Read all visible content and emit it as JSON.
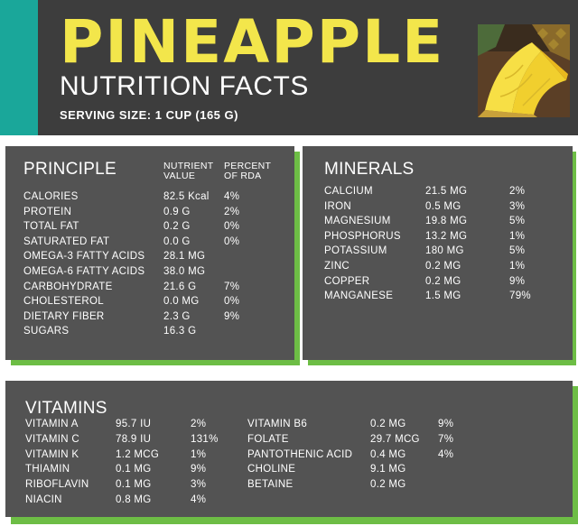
{
  "header": {
    "title": "PINEAPPLE",
    "subtitle": "NUTRITION FACTS",
    "serving": "SERVING SIZE: 1 CUP (165 G)",
    "colors": {
      "background": "#3d3d3d",
      "accent": "#1aa79a",
      "title": "#f3e64b"
    }
  },
  "principle": {
    "title": "PRINCIPLE",
    "col_value": [
      "NUTRIENT",
      "VALUE"
    ],
    "col_rda": [
      "PERCENT",
      "OF RDA"
    ],
    "rows": [
      {
        "name": "CALORIES",
        "value": "82.5 Kcal",
        "rda": "4%"
      },
      {
        "name": "PROTEIN",
        "value": "0.9 G",
        "rda": "2%"
      },
      {
        "name": "TOTAL FAT",
        "value": "0.2 G",
        "rda": "0%"
      },
      {
        "name": "SATURATED FAT",
        "value": "0.0 G",
        "rda": "0%"
      },
      {
        "name": "OMEGA-3 FATTY ACIDS",
        "value": "28.1 MG",
        "rda": ""
      },
      {
        "name": "OMEGA-6 FATTY ACIDS",
        "value": "38.0 MG",
        "rda": ""
      },
      {
        "name": "CARBOHYDRATE",
        "value": "21.6 G",
        "rda": "7%"
      },
      {
        "name": "CHOLESTEROL",
        "value": "0.0 MG",
        "rda": "0%"
      },
      {
        "name": "DIETARY FIBER",
        "value": "2.3 G",
        "rda": "9%"
      },
      {
        "name": "SUGARS",
        "value": "16.3 G",
        "rda": ""
      }
    ]
  },
  "minerals": {
    "title": "MINERALS",
    "rows": [
      {
        "name": "CALCIUM",
        "value": "21.5 MG",
        "rda": "2%"
      },
      {
        "name": "IRON",
        "value": "0.5 MG",
        "rda": "3%"
      },
      {
        "name": "MAGNESIUM",
        "value": "19.8 MG",
        "rda": "5%"
      },
      {
        "name": "PHOSPHORUS",
        "value": "13.2 MG",
        "rda": "1%"
      },
      {
        "name": "POTASSIUM",
        "value": "180 MG",
        "rda": "5%"
      },
      {
        "name": "ZINC",
        "value": "0.2 MG",
        "rda": "1%"
      },
      {
        "name": "COPPER",
        "value": "0.2 MG",
        "rda": "9%"
      },
      {
        "name": "MANGANESE",
        "value": "1.5 MG",
        "rda": "79%"
      }
    ]
  },
  "vitamins": {
    "title": "VITAMINS",
    "left": [
      {
        "name": "VITAMIN A",
        "value": "95.7 IU",
        "rda": "2%"
      },
      {
        "name": "VITAMIN C",
        "value": "78.9 IU",
        "rda": "131%"
      },
      {
        "name": "VITAMIN K",
        "value": "1.2 MCG",
        "rda": "1%"
      },
      {
        "name": "THIAMIN",
        "value": "0.1 MG",
        "rda": "9%"
      },
      {
        "name": "RIBOFLAVIN",
        "value": "0.1 MG",
        "rda": "3%"
      },
      {
        "name": "NIACIN",
        "value": "0.8 MG",
        "rda": "4%"
      }
    ],
    "right": [
      {
        "name": "VITAMIN B6",
        "value": "0.2 MG",
        "rda": "9%"
      },
      {
        "name": "FOLATE",
        "value": "29.7 MCG",
        "rda": "7%"
      },
      {
        "name": "PANTOTHENIC ACID",
        "value": "0.4 MG",
        "rda": "4%"
      },
      {
        "name": "CHOLINE",
        "value": "9.1 MG",
        "rda": ""
      },
      {
        "name": "BETAINE",
        "value": "0.2 MG",
        "rda": ""
      }
    ]
  },
  "image": {
    "icon": "pineapple-slice-photo"
  }
}
